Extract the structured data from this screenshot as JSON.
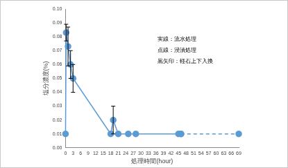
{
  "chart_data": {
    "type": "line",
    "x_label": "処理時間(hour)",
    "y_label": "塩分濃度(%)",
    "annotations": [
      "実線：流水処理",
      "点線：浸漬処理",
      "黒矢印：軽石上下入換"
    ],
    "xlim": [
      0,
      69
    ],
    "xticks": [
      0,
      3,
      6,
      9,
      12,
      15,
      18,
      21,
      24,
      27,
      30,
      33,
      36,
      39,
      42,
      45,
      48,
      51,
      54,
      57,
      60,
      63,
      66,
      69
    ],
    "ylim": [
      0,
      0.1
    ],
    "yticks": [
      {
        "value": 0,
        "label": "0.00"
      },
      {
        "value": 0.01,
        "label": "0.01"
      },
      {
        "value": 0.02,
        "label": "0.02"
      },
      {
        "value": 0.03,
        "label": "0.03"
      },
      {
        "value": 0.04,
        "label": "0.04"
      },
      {
        "value": 0.05,
        "label": "0.05"
      },
      {
        "value": 0.06,
        "label": "0.06"
      },
      {
        "value": 0.07,
        "label": "0.07"
      },
      {
        "value": 0.08,
        "label": "0.08"
      },
      {
        "value": 0.09,
        "label": "0.09"
      },
      {
        "value": 0.1,
        "label": "0.10"
      }
    ],
    "grid": false,
    "series": [
      {
        "line_style": "solid",
        "marker": "circle",
        "color": "#5b9bd5",
        "x": [
          0,
          0.25,
          1,
          2,
          3,
          18,
          19,
          21,
          25,
          28,
          45,
          46
        ],
        "values": [
          0.01,
          0.083,
          0.073,
          0.06,
          0.05,
          0.01,
          0.02,
          0.01,
          0.01,
          0.01,
          0.01,
          0.01
        ],
        "errors": [
          0,
          0.006,
          0.014,
          0.01,
          0.01,
          0,
          0.01,
          0,
          0,
          0,
          0,
          0
        ]
      },
      {
        "line_style": "dashed",
        "marker": "circle",
        "color": "#5b9bd5",
        "x": [
          46,
          69
        ],
        "values": [
          0.01,
          0.01
        ]
      }
    ]
  }
}
